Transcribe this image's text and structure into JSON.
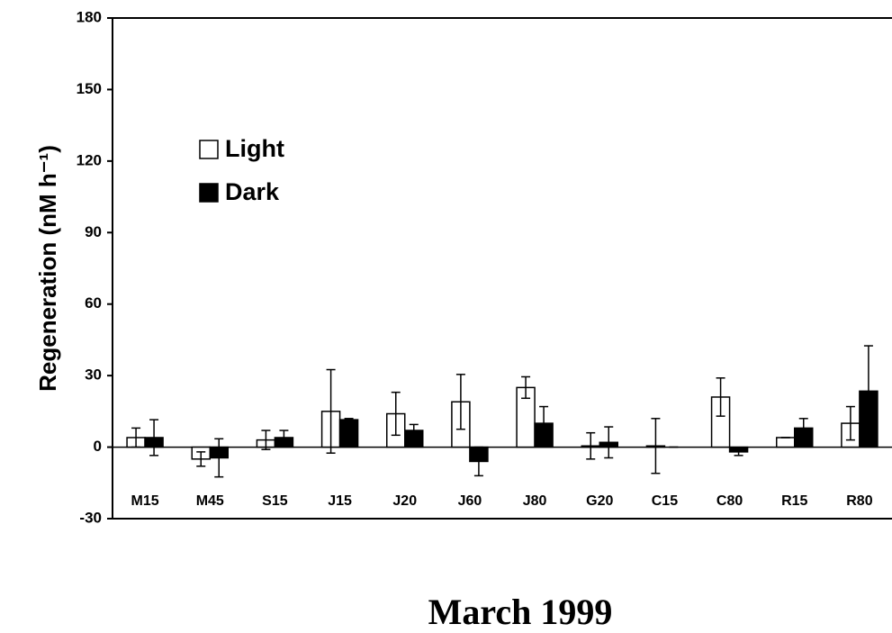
{
  "chart_data": {
    "type": "bar",
    "title": "March 1999",
    "y_label": "Regeneration (nM h⁻¹)",
    "categories": [
      "M15",
      "M45",
      "S15",
      "J15",
      "J20",
      "J60",
      "J80",
      "G20",
      "C15",
      "C80",
      "R15",
      "R80"
    ],
    "series": [
      {
        "name": "Light",
        "color": "#ffffff",
        "values": [
          4,
          -5,
          3,
          15,
          14,
          19,
          25,
          0.5,
          0.5,
          21,
          4,
          10
        ],
        "errors": [
          4,
          3,
          4,
          17.5,
          9,
          11.5,
          4.5,
          5.5,
          11.5,
          8,
          0,
          7
        ]
      },
      {
        "name": "Dark",
        "color": "#000000",
        "values": [
          4,
          -4.5,
          4,
          11.5,
          7,
          -6,
          10,
          2,
          0,
          -2,
          8,
          23.5
        ],
        "errors": [
          7.5,
          8,
          3,
          0.5,
          2.5,
          6,
          7,
          6.5,
          0,
          1.5,
          4,
          19
        ]
      }
    ],
    "ylim": [
      -30,
      180
    ],
    "yticks": [
      -30,
      0,
      30,
      60,
      90,
      120,
      150,
      180
    ],
    "legend": "upper left",
    "grid": false
  }
}
